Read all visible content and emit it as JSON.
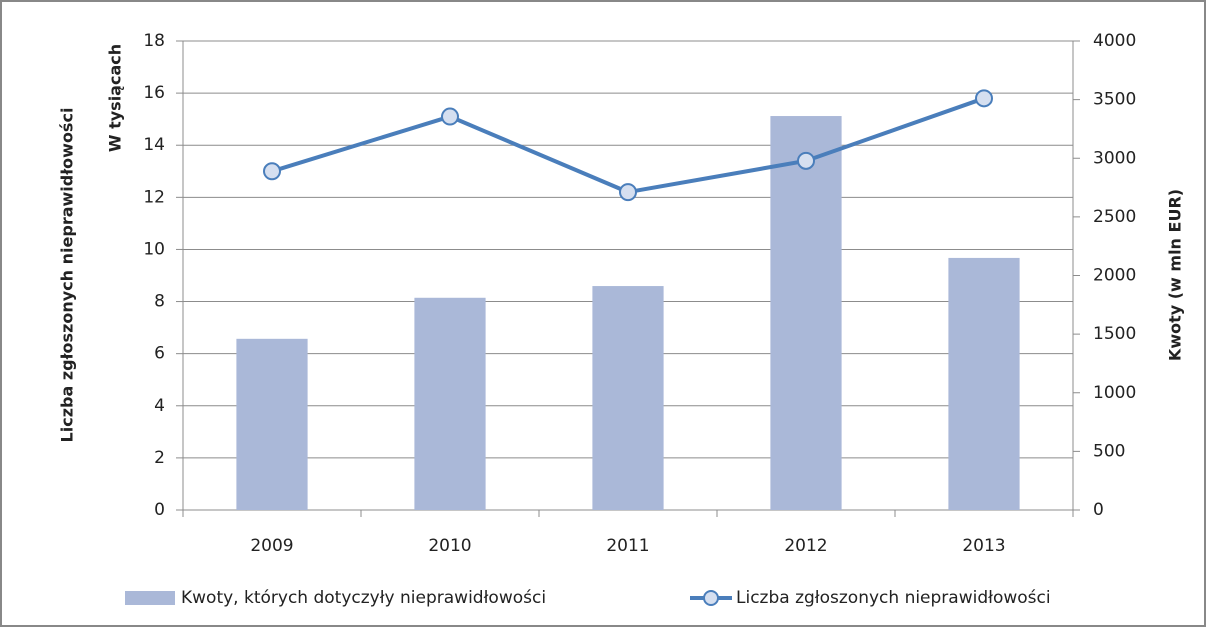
{
  "chart_data": {
    "type": "bar",
    "y_label": "Liczba zgłoszonych nieprawidłowości",
    "y_sublabel": "W tysiącach",
    "y2_label": "Kwoty (w mln EUR)",
    "categories": [
      "2009",
      "2010",
      "2011",
      "2012",
      "2013"
    ],
    "series": [
      {
        "name": "Kwoty, których dotyczyły nieprawidłowości",
        "type": "bar",
        "axis": "y2",
        "color": "#aab8d8",
        "values": [
          1460,
          1810,
          1910,
          3360,
          2150
        ]
      },
      {
        "name": "Liczba zgłoszonych nieprawidłowości",
        "type": "line",
        "color": "#4a7ebb",
        "marker_fill": "#d5dff0",
        "values": [
          13.0,
          15.1,
          12.2,
          13.4,
          15.8
        ]
      }
    ],
    "ylim": [
      0,
      18
    ],
    "yticks": [
      0,
      2,
      4,
      6,
      8,
      10,
      12,
      14,
      16,
      18
    ],
    "y2lim": [
      0,
      4000
    ],
    "y2ticks": [
      0,
      500,
      1000,
      1500,
      2000,
      2500,
      3000,
      3500,
      4000
    ],
    "grid": true
  }
}
